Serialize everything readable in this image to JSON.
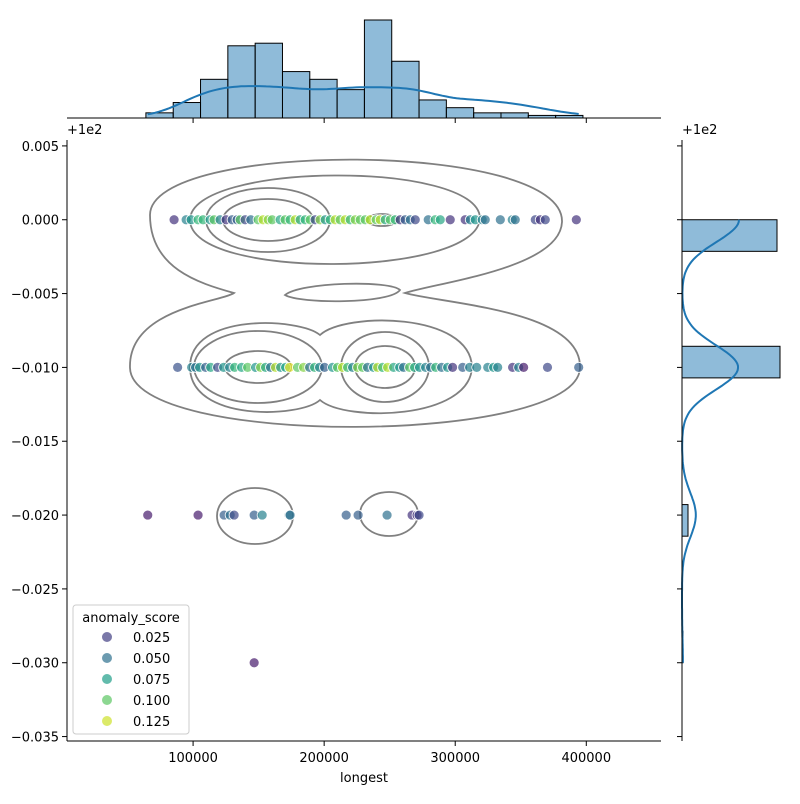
{
  "chart_data": {
    "type": "scatter",
    "subtype": "jointplot with kde contours and marginal histograms",
    "xlabel": "longest",
    "ylabel": "",
    "y_offset_text": "+1e2",
    "xlim": [
      3800,
      457000
    ],
    "ylim": [
      -0.0353,
      0.0054
    ],
    "x_ticks": [
      100000,
      200000,
      300000,
      400000
    ],
    "x_tick_labels": [
      "100000",
      "200000",
      "300000",
      "400000"
    ],
    "y_ticks": [
      0.005,
      0.0,
      -0.005,
      -0.01,
      -0.015,
      -0.02,
      -0.025,
      -0.03,
      -0.035
    ],
    "y_tick_labels": [
      "0.005",
      "0.000",
      "−0.005",
      "−0.010",
      "−0.015",
      "−0.020",
      "−0.025",
      "−0.030",
      "−0.035"
    ],
    "grid": false,
    "hue": "anomaly_score",
    "colormap": "viridis",
    "hue_range": [
      0.0,
      0.135
    ],
    "point_alpha": 0.7,
    "legend": {
      "title": "anomaly_score",
      "placement": "lower-left",
      "entries": [
        {
          "label": "0.025",
          "value": 0.025
        },
        {
          "label": "0.050",
          "value": 0.05
        },
        {
          "label": "0.075",
          "value": 0.075
        },
        {
          "label": "0.100",
          "value": 0.1
        },
        {
          "label": "0.125",
          "value": 0.125
        }
      ]
    },
    "points": [
      [
        85500,
        0,
        0.02
      ],
      [
        94700,
        0,
        0.06
      ],
      [
        98500,
        0,
        0.07
      ],
      [
        103800,
        0,
        0.09
      ],
      [
        107600,
        0,
        0.09
      ],
      [
        113000,
        0,
        0.07
      ],
      [
        116000,
        0,
        0.1
      ],
      [
        120600,
        0,
        0.06
      ],
      [
        125200,
        0,
        0.02
      ],
      [
        129800,
        0,
        0.04
      ],
      [
        133600,
        0,
        0.04
      ],
      [
        135900,
        0,
        0.1
      ],
      [
        139700,
        0,
        0.03
      ],
      [
        144000,
        0,
        0.05
      ],
      [
        149600,
        0,
        0.1
      ],
      [
        153400,
        0,
        0.12
      ],
      [
        157300,
        0,
        0.11
      ],
      [
        160300,
        0,
        0.1
      ],
      [
        166400,
        0,
        0.08
      ],
      [
        170200,
        0,
        0.1
      ],
      [
        174000,
        0,
        0.09
      ],
      [
        177900,
        0,
        0.12
      ],
      [
        181700,
        0,
        0.08
      ],
      [
        185500,
        0,
        0.09
      ],
      [
        189300,
        0,
        0.1
      ],
      [
        193100,
        0,
        0.03
      ],
      [
        196900,
        0,
        0.11
      ],
      [
        200800,
        0,
        0.07
      ],
      [
        204600,
        0,
        0.09
      ],
      [
        208400,
        0,
        0.12
      ],
      [
        212200,
        0,
        0.1
      ],
      [
        216000,
        0,
        0.12
      ],
      [
        219900,
        0,
        0.09
      ],
      [
        223700,
        0,
        0.11
      ],
      [
        227500,
        0,
        0.1
      ],
      [
        231300,
        0,
        0.1
      ],
      [
        235100,
        0,
        0.12
      ],
      [
        239700,
        0,
        0.1
      ],
      [
        242800,
        0,
        0.12
      ],
      [
        246600,
        0,
        0.08
      ],
      [
        250400,
        0,
        0.1
      ],
      [
        254200,
        0,
        0.09
      ],
      [
        258000,
        0,
        0.02
      ],
      [
        261800,
        0,
        0.04
      ],
      [
        265700,
        0,
        0.05
      ],
      [
        269500,
        0,
        0.03
      ],
      [
        279400,
        0,
        0.05
      ],
      [
        284700,
        0,
        0.09
      ],
      [
        288600,
        0,
        0.08
      ],
      [
        296200,
        0,
        0.02
      ],
      [
        307600,
        0,
        0.02
      ],
      [
        311500,
        0,
        0.06
      ],
      [
        315300,
        0,
        0.07
      ],
      [
        320600,
        0,
        0.06
      ],
      [
        322900,
        0,
        0.05
      ],
      [
        334400,
        0,
        0.05
      ],
      [
        343500,
        0,
        0.06
      ],
      [
        345800,
        0,
        0.05
      ],
      [
        361100,
        0,
        0.03
      ],
      [
        364900,
        0,
        0.02
      ],
      [
        368700,
        0,
        0.03
      ],
      [
        392400,
        0,
        0.02
      ],
      [
        88200,
        -0.01,
        0.035
      ],
      [
        98900,
        -0.01,
        0.06
      ],
      [
        101900,
        -0.01,
        0.05
      ],
      [
        105000,
        -0.01,
        0.07
      ],
      [
        109600,
        -0.01,
        0.04
      ],
      [
        113400,
        -0.01,
        0.08
      ],
      [
        118700,
        -0.01,
        0.03
      ],
      [
        123300,
        -0.01,
        0.07
      ],
      [
        127900,
        -0.01,
        0.06
      ],
      [
        131700,
        -0.01,
        0.09
      ],
      [
        137000,
        -0.01,
        0.08
      ],
      [
        141600,
        -0.01,
        0.1
      ],
      [
        147700,
        -0.01,
        0.07
      ],
      [
        151500,
        -0.01,
        0.11
      ],
      [
        155300,
        -0.01,
        0.08
      ],
      [
        159100,
        -0.01,
        0.05
      ],
      [
        162900,
        -0.01,
        0.12
      ],
      [
        166800,
        -0.01,
        0.07
      ],
      [
        170600,
        -0.01,
        0.08
      ],
      [
        173600,
        -0.01,
        0.13
      ],
      [
        179700,
        -0.01,
        0.1
      ],
      [
        184300,
        -0.01,
        0.11
      ],
      [
        188900,
        -0.01,
        0.05
      ],
      [
        192700,
        -0.01,
        0.09
      ],
      [
        196500,
        -0.01,
        0.06
      ],
      [
        200300,
        -0.01,
        0.04
      ],
      [
        206400,
        -0.01,
        0.07
      ],
      [
        210200,
        -0.01,
        0.1
      ],
      [
        214000,
        -0.01,
        0.12
      ],
      [
        217900,
        -0.01,
        0.09
      ],
      [
        221700,
        -0.01,
        0.06
      ],
      [
        225500,
        -0.01,
        0.11
      ],
      [
        229300,
        -0.01,
        0.1
      ],
      [
        233100,
        -0.01,
        0.05
      ],
      [
        237700,
        -0.01,
        0.07
      ],
      [
        240800,
        -0.01,
        0.12
      ],
      [
        244600,
        -0.01,
        0.09
      ],
      [
        248400,
        -0.01,
        0.12
      ],
      [
        253000,
        -0.01,
        0.08
      ],
      [
        257600,
        -0.01,
        0.07
      ],
      [
        260600,
        -0.01,
        0.05
      ],
      [
        265200,
        -0.01,
        0.1
      ],
      [
        269000,
        -0.01,
        0.08
      ],
      [
        272800,
        -0.01,
        0.07
      ],
      [
        277400,
        -0.01,
        0.06
      ],
      [
        281200,
        -0.01,
        0.05
      ],
      [
        285100,
        -0.01,
        0.09
      ],
      [
        289600,
        -0.01,
        0.05
      ],
      [
        294200,
        -0.01,
        0.07
      ],
      [
        298000,
        -0.01,
        0.02
      ],
      [
        305700,
        -0.01,
        0.04
      ],
      [
        311000,
        -0.01,
        0.06
      ],
      [
        316400,
        -0.01,
        0.06
      ],
      [
        324800,
        -0.01,
        0.06
      ],
      [
        329300,
        -0.01,
        0.07
      ],
      [
        332400,
        -0.01,
        0.06
      ],
      [
        343800,
        -0.01,
        0.02
      ],
      [
        348400,
        -0.01,
        0.06
      ],
      [
        352200,
        -0.01,
        0.01
      ],
      [
        370400,
        -0.01,
        0.03
      ],
      [
        394200,
        -0.01,
        0.04
      ],
      [
        65400,
        -0.02,
        0.01
      ],
      [
        103800,
        -0.02,
        0.01
      ],
      [
        123700,
        -0.02,
        0.04
      ],
      [
        128300,
        -0.02,
        0.05
      ],
      [
        131300,
        -0.02,
        0.03
      ],
      [
        146600,
        -0.02,
        0.04
      ],
      [
        152700,
        -0.02,
        0.06
      ],
      [
        173300,
        -0.02,
        0.05
      ],
      [
        174000,
        -0.02,
        0.05
      ],
      [
        216800,
        -0.02,
        0.04
      ],
      [
        225900,
        -0.02,
        0.04
      ],
      [
        248000,
        -0.02,
        0.05
      ],
      [
        267100,
        -0.02,
        0.02
      ],
      [
        270900,
        -0.02,
        0.02
      ],
      [
        272400,
        -0.02,
        0.03
      ],
      [
        146600,
        -0.03,
        0.01
      ]
    ],
    "marginal_x_hist": {
      "bin_start": 64000,
      "bin_width": 20840,
      "counts": [
        2,
        6,
        15,
        28,
        29,
        18,
        15,
        11,
        38,
        22,
        7,
        4,
        2,
        2,
        1,
        1
      ],
      "kde": true,
      "color": "#1f77b4"
    },
    "marginal_y_hist": {
      "bins": [
        [
          -0.03,
          -0.02786
        ],
        [
          -0.02143,
          -0.01929
        ],
        [
          -0.01071,
          -0.00857
        ],
        [
          -0.00214,
          0.0
        ]
      ],
      "counts": [
        1,
        6,
        98,
        95
      ],
      "kde": true,
      "color": "#1f77b4"
    },
    "kde_contour_color": "#808080"
  }
}
